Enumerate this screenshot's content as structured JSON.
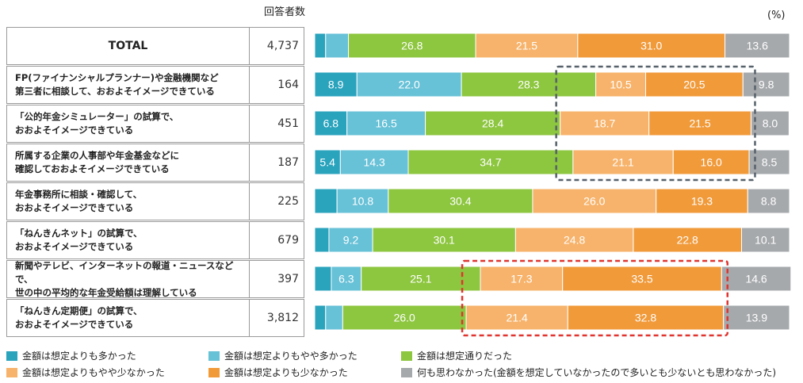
{
  "header": {
    "respondents_label": "回答者数",
    "unit_label": "(%)"
  },
  "colors": {
    "much_more": "#2aa3bd",
    "slightly_more": "#67c1d7",
    "as_expected": "#8dc63f",
    "slightly_less": "#f7b36b",
    "much_less": "#f19a3a",
    "no_thought": "#a6a9ac"
  },
  "legend": [
    "金額は想定よりも多かった",
    "金額は想定よりもやや多かった",
    "金額は想定通りだった",
    "金額は想定よりもやや少なかった",
    "金額は想定よりも少なかった",
    "何も思わなかった(金額を想定していなかったので多いとも少ないとも思わなかった)"
  ],
  "rows": [
    {
      "label": "TOTAL",
      "n": "4,737"
    },
    {
      "label": "FP(ファイナンシャルプランナー)や金融機関など\n第三者に相談して、おおよそイメージできている",
      "n": "164"
    },
    {
      "label": "「公的年金シミュレーター」の試算で、\nおおよそイメージできている",
      "n": "451"
    },
    {
      "label": "所属する企業の人事部や年金基金などに\n確認しておおよそイメージできている",
      "n": "187"
    },
    {
      "label": "年金事務所に相談・確認して、\nおおよそイメージできている",
      "n": "225"
    },
    {
      "label": "「ねんきんネット」の試算で、\nおおよそイメージできている",
      "n": "679"
    },
    {
      "label": "新聞やテレビ、インターネットの報道・ニュースなどで、\n世の中の平均的な年金受給額は理解している",
      "n": "397"
    },
    {
      "label": "「ねんきん定期便」の試算で、\nおおよそイメージできている",
      "n": "3,812"
    }
  ],
  "chart_data": {
    "type": "bar",
    "stacked": "horizontal-100%",
    "series_names": [
      "金額は想定よりも多かった",
      "金額は想定よりもやや多かった",
      "金額は想定通りだった",
      "金額は想定よりもやや少なかった",
      "金額は想定よりも少なかった",
      "何も思わなかった(金額を想定していなかったので多いとも少ないとも思わなかった)"
    ],
    "values": [
      [
        2.3,
        4.8,
        26.8,
        21.5,
        31.0,
        13.6
      ],
      [
        8.9,
        22.0,
        28.3,
        10.5,
        20.5,
        9.8
      ],
      [
        6.8,
        16.5,
        28.4,
        18.7,
        21.5,
        8.0
      ],
      [
        5.4,
        14.3,
        34.7,
        21.1,
        16.0,
        8.5
      ],
      [
        4.7,
        10.8,
        30.4,
        26.0,
        19.3,
        8.8
      ],
      [
        3.0,
        9.2,
        30.1,
        24.8,
        22.8,
        10.1
      ],
      [
        3.5,
        6.3,
        25.1,
        17.3,
        33.5,
        14.6
      ],
      [
        2.3,
        3.6,
        26.0,
        21.4,
        32.8,
        13.9
      ]
    ],
    "labels": [
      [
        "",
        "",
        "26.8",
        "21.5",
        "31.0",
        "13.6"
      ],
      [
        "8.9",
        "22.0",
        "28.3",
        "10.5",
        "20.5",
        "9.8"
      ],
      [
        "6.8",
        "16.5",
        "28.4",
        "18.7",
        "21.5",
        "8.0"
      ],
      [
        "5.4",
        "14.3",
        "34.7",
        "21.1",
        "16.0",
        "8.5"
      ],
      [
        "",
        "10.8",
        "30.4",
        "26.0",
        "19.3",
        "8.8"
      ],
      [
        "",
        "9.2",
        "30.1",
        "24.8",
        "22.8",
        "10.1"
      ],
      [
        "",
        "6.3",
        "25.1",
        "17.3",
        "33.5",
        "14.6"
      ],
      [
        "",
        "",
        "26.0",
        "21.4",
        "32.8",
        "13.9"
      ]
    ],
    "xlim": [
      0,
      100
    ],
    "highlight_boxes": [
      {
        "rows": [
          1,
          3
        ],
        "from_series": 3,
        "to_series": 4,
        "style": "dark-gray-dashed"
      },
      {
        "rows": [
          6,
          7
        ],
        "from_series": 3,
        "to_series": 4,
        "style": "red-dashed"
      }
    ]
  }
}
